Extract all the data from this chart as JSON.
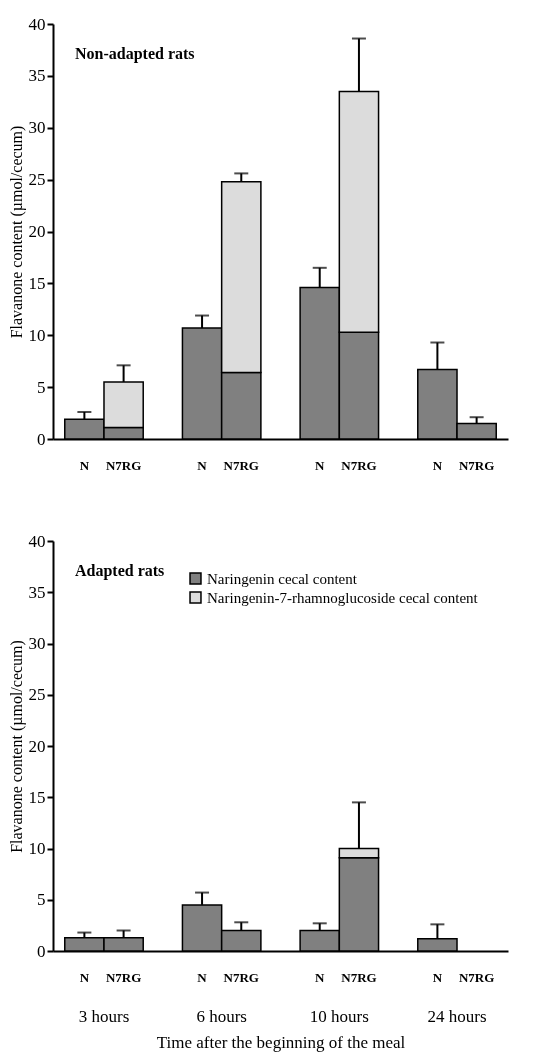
{
  "chart_data": [
    {
      "type": "bar",
      "title": "Non-adapted rats",
      "ylabel": "Flavanone content (µmol/cecum)",
      "categories": [
        "N",
        "N7RG",
        "N",
        "N7RG",
        "N",
        "N7RG",
        "N",
        "N7RG"
      ],
      "stacked": true,
      "ylim": [
        0,
        40
      ],
      "yticks": [
        0,
        5,
        10,
        15,
        20,
        25,
        30,
        35,
        40
      ],
      "grid": false,
      "legend": false,
      "series": [
        {
          "color": "#808080",
          "values": [
            1.9,
            1.1,
            10.7,
            6.4,
            14.6,
            10.3,
            6.7,
            1.5
          ],
          "errors": [
            0.7,
            null,
            1.2,
            null,
            1.9,
            null,
            2.6,
            0.6
          ]
        },
        {
          "color": "#dcdcdc",
          "values": [
            null,
            4.4,
            null,
            18.4,
            null,
            23.2,
            null,
            null
          ],
          "errors": [
            null,
            1.6,
            null,
            0.8,
            null,
            5.1,
            null,
            null
          ]
        }
      ]
    },
    {
      "type": "bar",
      "title": "Adapted rats",
      "ylabel": "Flavanone content (µmol/cecum)",
      "xlabel": "Time after the beginning of the meal",
      "annotations": [
        "3 hours",
        "6 hours",
        "10 hours",
        "24 hours"
      ],
      "categories": [
        "N",
        "N7RG",
        "N",
        "N7RG",
        "N",
        "N7RG",
        "N",
        "N7RG"
      ],
      "stacked": true,
      "ylim": [
        0,
        40
      ],
      "yticks": [
        0,
        5,
        10,
        15,
        20,
        25,
        30,
        35,
        40
      ],
      "grid": false,
      "legend": "top right",
      "series": [
        {
          "name": "Naringenin cecal content",
          "color": "#808080",
          "values": [
            1.3,
            1.3,
            4.5,
            2.0,
            2.0,
            9.1,
            1.2,
            null
          ],
          "errors": [
            0.5,
            0.7,
            1.2,
            0.8,
            0.7,
            null,
            1.4,
            null
          ]
        },
        {
          "name": "Naringenin-7-rhamnoglucoside cecal content",
          "color": "#dcdcdc",
          "values": [
            null,
            null,
            null,
            null,
            null,
            0.9,
            null,
            null
          ],
          "errors": [
            null,
            null,
            null,
            null,
            null,
            4.5,
            null,
            null
          ]
        }
      ]
    }
  ]
}
